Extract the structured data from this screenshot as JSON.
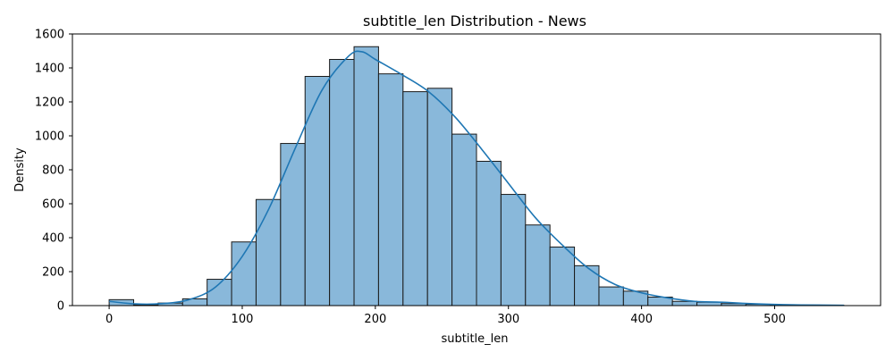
{
  "chart_data": {
    "type": "bar",
    "title": "subtitle_len Distribution - News",
    "xlabel": "subtitle_len",
    "ylabel": "Density",
    "xlim": [
      -27.6,
      579.6
    ],
    "ylim": [
      0,
      1600
    ],
    "x_ticks": [
      0,
      100,
      200,
      300,
      400,
      500
    ],
    "y_ticks": [
      0,
      200,
      400,
      600,
      800,
      1000,
      1200,
      1400,
      1600
    ],
    "bin_edges": [
      0,
      18.4,
      36.8,
      55.2,
      73.6,
      92,
      110.4,
      128.8,
      147.2,
      165.6,
      184,
      202.4,
      220.8,
      239.2,
      257.6,
      276,
      294.4,
      312.8,
      331.2,
      349.6,
      368,
      386.4,
      404.8,
      423.2,
      441.6,
      460,
      478.4,
      496.8,
      515.2,
      533.6,
      552
    ],
    "values": [
      35,
      5,
      15,
      40,
      155,
      375,
      625,
      955,
      1350,
      1450,
      1525,
      1365,
      1260,
      1280,
      1010,
      850,
      655,
      475,
      345,
      235,
      110,
      85,
      50,
      25,
      20,
      12,
      8,
      5,
      3,
      2
    ],
    "kde": {
      "x": [
        0,
        20,
        40,
        60,
        80,
        100,
        120,
        140,
        160,
        180,
        190,
        200,
        220,
        240,
        260,
        280,
        300,
        320,
        340,
        360,
        380,
        400,
        420,
        440,
        460,
        480,
        500,
        520,
        552
      ],
      "y": [
        25,
        10,
        12,
        35,
        110,
        290,
        570,
        930,
        1270,
        1470,
        1495,
        1450,
        1360,
        1260,
        1110,
        920,
        720,
        520,
        360,
        220,
        125,
        75,
        45,
        25,
        20,
        12,
        7,
        4,
        2
      ]
    },
    "colors": {
      "bar_fill": "#89b8da",
      "bar_edge": "#1a1a1a",
      "kde_line": "#1f77b4"
    },
    "grid": false,
    "legend": "none"
  }
}
